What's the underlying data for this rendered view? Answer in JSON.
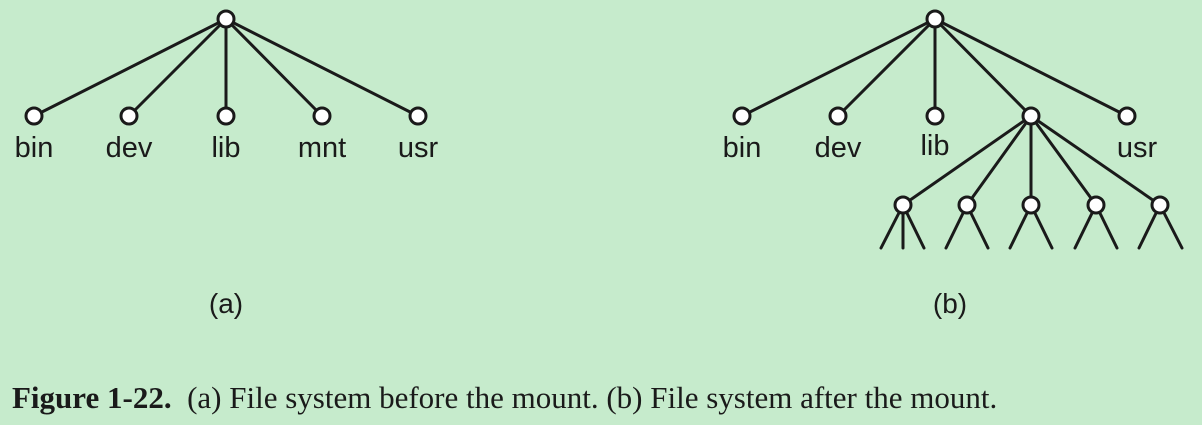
{
  "panel_a": {
    "labels": [
      "bin",
      "dev",
      "lib",
      "mnt",
      "usr"
    ],
    "sublabel": "(a)"
  },
  "panel_b": {
    "labels": [
      "bin",
      "dev",
      "lib",
      "usr"
    ],
    "sublabel": "(b)"
  },
  "caption": {
    "figure": "Figure 1-22.",
    "text": "(a) File system before the mount.  (b) File system after the mount."
  }
}
